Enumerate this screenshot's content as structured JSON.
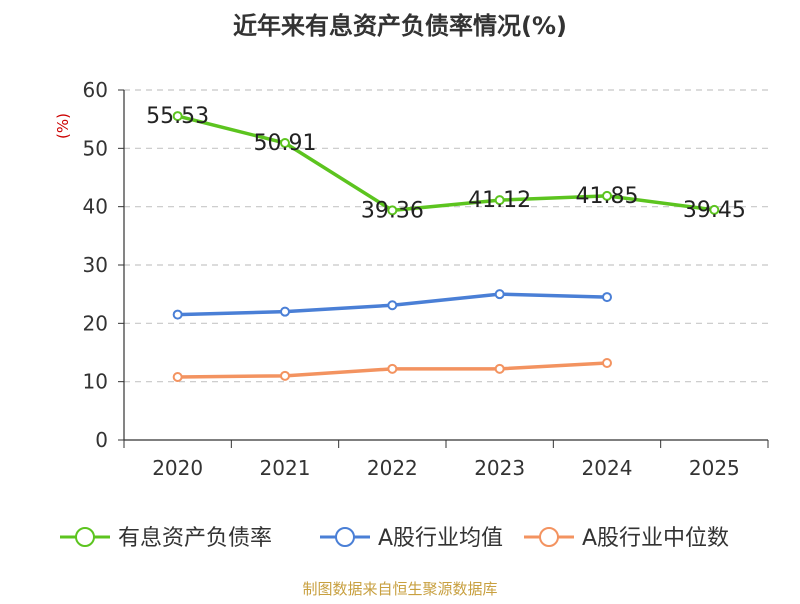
{
  "chart_data": {
    "type": "line",
    "title": "近年来有息资产负债率情况(%)",
    "ylabel": "(%)",
    "xlabel": "",
    "categories": [
      "2020",
      "2021",
      "2022",
      "2023",
      "2024",
      "2025"
    ],
    "ylim": [
      0,
      60
    ],
    "yticks": [
      0,
      10,
      20,
      30,
      40,
      50,
      60
    ],
    "grid": true,
    "legend_position": "bottom",
    "series": [
      {
        "name": "有息资产负债率",
        "color": "#5cc41f",
        "values": [
          55.53,
          50.91,
          39.36,
          41.12,
          41.85,
          39.45
        ],
        "labels": [
          "55.53",
          "50.91",
          "39.36",
          "41.12",
          "41.85",
          "39.45"
        ]
      },
      {
        "name": "A股行业均值",
        "color": "#4a7fd6",
        "values": [
          21.5,
          22.0,
          23.1,
          25.0,
          24.5,
          null
        ]
      },
      {
        "name": "A股行业中位数",
        "color": "#f39360",
        "values": [
          10.8,
          11.0,
          12.2,
          12.2,
          13.2,
          null
        ]
      }
    ]
  },
  "source": "制图数据来自恒生聚源数据库",
  "colors": {
    "title": "#333333",
    "axis": "#333333",
    "ylabel": "#cc0000",
    "grid": "#c8c8c8",
    "source": "#c8a040"
  }
}
